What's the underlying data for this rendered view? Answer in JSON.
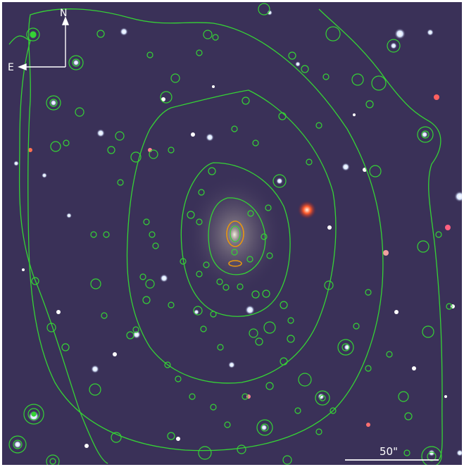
{
  "image": {
    "compass": {
      "north": "N",
      "east": "E"
    },
    "scale_bar": {
      "label": "50\""
    },
    "colors": {
      "sky": "#3a3158",
      "contour": "#35d335",
      "marker": "#e8960f",
      "annotation": "#ffffff"
    }
  }
}
